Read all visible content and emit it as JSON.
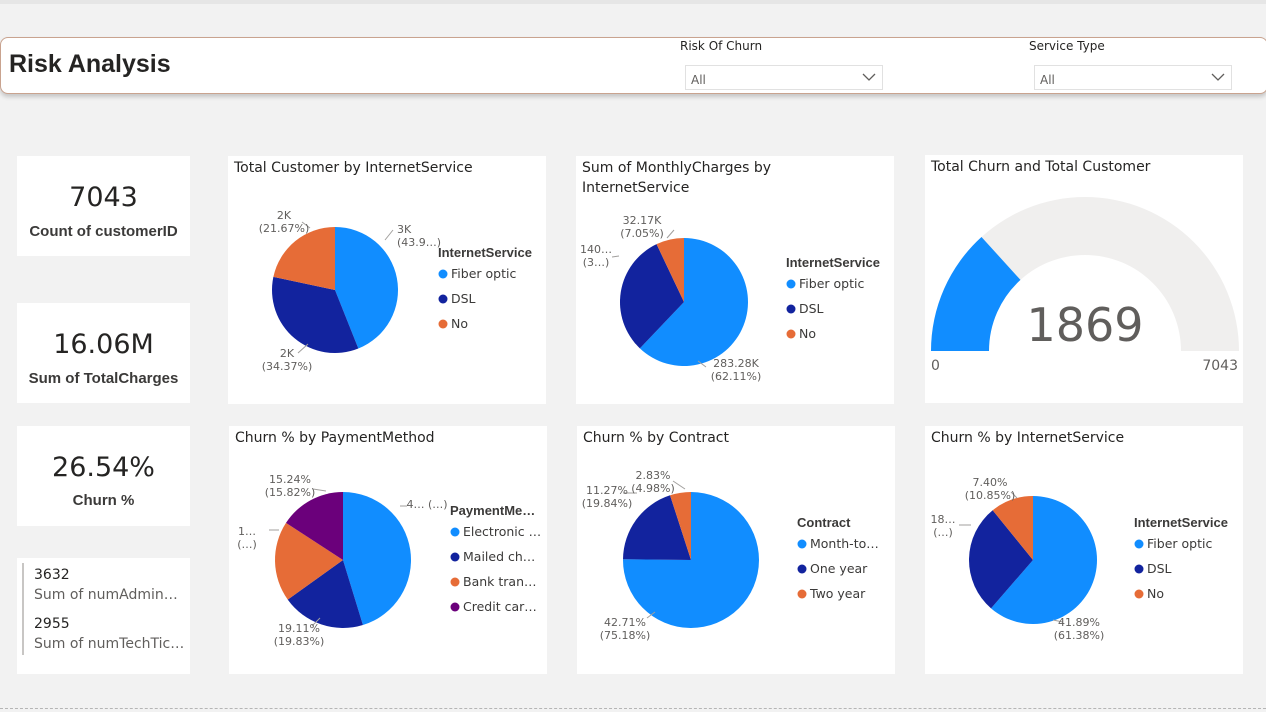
{
  "header": {
    "title": "Risk Analysis",
    "slicers": [
      {
        "label": "Risk Of Churn",
        "value": "All"
      },
      {
        "label": "Service Type",
        "value": "All"
      }
    ]
  },
  "kpis": [
    {
      "value": "7043",
      "label": "Count of customerID"
    },
    {
      "value": "16.06M",
      "label": "Sum of TotalCharges"
    },
    {
      "value": "26.54%",
      "label": "Churn %"
    }
  ],
  "multi_card": [
    {
      "value": "3632",
      "label": "Sum of numAdmin…"
    },
    {
      "value": "2955",
      "label": "Sum of numTechTic…"
    }
  ],
  "colors": {
    "blue": "#118DFF",
    "navy": "#12239E",
    "orange": "#E66C37",
    "purple": "#6B007B",
    "gauge_track": "#F0EFEE"
  },
  "chart_data": [
    {
      "type": "pie",
      "title": "Total Customer by InternetService",
      "legend_title": "InternetService",
      "slices": [
        {
          "label": "Fiber optic",
          "value": 3096,
          "share": 43.96,
          "color": "#118DFF",
          "data_label": [
            "3K",
            "(43.9…)"
          ]
        },
        {
          "label": "DSL",
          "value": 2421,
          "share": 34.37,
          "color": "#12239E",
          "data_label": [
            "2K",
            "(34.37%)"
          ]
        },
        {
          "label": "No",
          "value": 1526,
          "share": 21.67,
          "color": "#E66C37",
          "data_label": [
            "2K",
            "(21.67%)"
          ]
        }
      ]
    },
    {
      "type": "pie",
      "title": "Sum of MonthlyCharges by InternetService",
      "legend_title": "InternetService",
      "slices": [
        {
          "label": "Fiber optic",
          "value": 283280,
          "share": 62.11,
          "color": "#118DFF",
          "data_label": [
            "283.28K",
            "(62.11%)"
          ]
        },
        {
          "label": "DSL",
          "value": 140660,
          "share": 30.84,
          "color": "#12239E",
          "data_label": [
            "140…",
            "(3…)"
          ]
        },
        {
          "label": "No",
          "value": 32170,
          "share": 7.05,
          "color": "#E66C37",
          "data_label": [
            "32.17K",
            "(7.05%)"
          ]
        }
      ]
    },
    {
      "type": "gauge",
      "title": "Total Churn and Total Customer",
      "value": 1869,
      "display_value": "1869",
      "min": 0,
      "max": 7043,
      "min_label": "0",
      "max_label": "7043"
    },
    {
      "type": "pie",
      "title": "Churn % by PaymentMethod",
      "legend_title": "PaymentMe…",
      "slices": [
        {
          "label": "Electronic …",
          "value": 45.27,
          "color": "#118DFF",
          "data_label": [
            "4… (…)"
          ]
        },
        {
          "label": "Mailed ch…",
          "value": 19.83,
          "color": "#12239E",
          "data_label": [
            "19.11%",
            "(19.83%)"
          ]
        },
        {
          "label": "Bank tran…",
          "value": 19.08,
          "color": "#E66C37",
          "data_label": [
            "1…",
            "(…)"
          ]
        },
        {
          "label": "Credit car…",
          "value": 15.82,
          "color": "#6B007B",
          "data_label": [
            "15.24%",
            "(15.82%)"
          ]
        }
      ]
    },
    {
      "type": "pie",
      "title": "Churn % by Contract",
      "legend_title": "Contract",
      "slices": [
        {
          "label": "Month-to…",
          "value": 75.18,
          "color": "#118DFF",
          "data_label": [
            "42.71%",
            "(75.18%)"
          ]
        },
        {
          "label": "One year",
          "value": 19.84,
          "color": "#12239E",
          "data_label": [
            "11.27%",
            "(19.84%)"
          ]
        },
        {
          "label": "Two year",
          "value": 4.98,
          "color": "#E66C37",
          "data_label": [
            "2.83%",
            "(4.98%)"
          ]
        }
      ]
    },
    {
      "type": "pie",
      "title": "Churn % by InternetService",
      "legend_title": "InternetService",
      "slices": [
        {
          "label": "Fiber optic",
          "value": 61.38,
          "color": "#118DFF",
          "data_label": [
            "41.89%",
            "(61.38%)"
          ]
        },
        {
          "label": "DSL",
          "value": 27.77,
          "color": "#12239E",
          "data_label": [
            "18…",
            "(…)"
          ]
        },
        {
          "label": "No",
          "value": 10.85,
          "color": "#E66C37",
          "data_label": [
            "7.40%",
            "(10.85%)"
          ]
        }
      ]
    }
  ]
}
